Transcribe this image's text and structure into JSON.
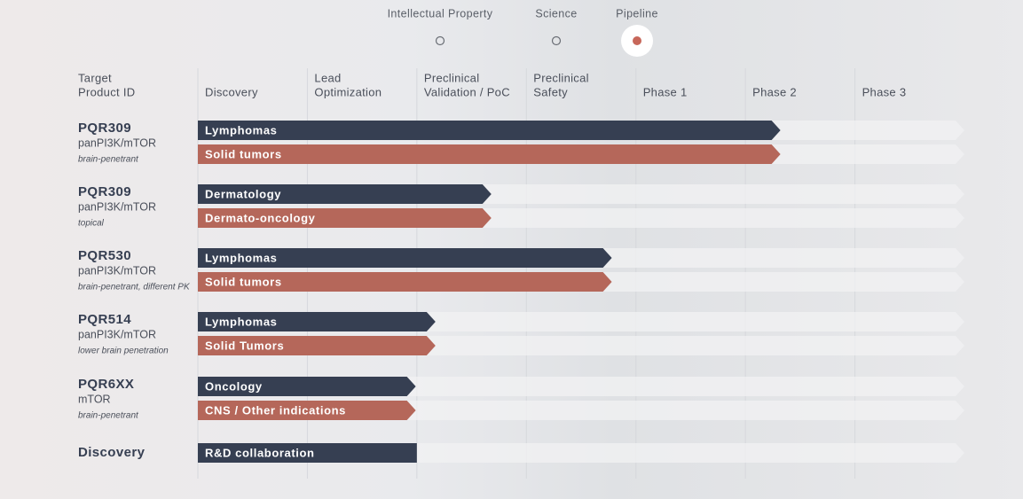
{
  "chart_data": {
    "type": "pipeline",
    "nav": [
      "Intellectual Property",
      "Science",
      "Pipeline"
    ],
    "active_nav": 2,
    "row_header": [
      "Target",
      "Product ID"
    ],
    "categories": [
      [
        "Discovery"
      ],
      [
        "Lead",
        "Optimization"
      ],
      [
        "Preclinical",
        "Validation / PoC"
      ],
      [
        "Preclinical",
        "Safety"
      ],
      [
        "Phase 1"
      ],
      [
        "Phase 2"
      ],
      [
        "Phase 3"
      ]
    ],
    "xlim": [
      0,
      7
    ],
    "products": [
      {
        "name": "PQR309",
        "target": "panPI3K/mTOR",
        "note": "brain-penetrant",
        "indications": [
          {
            "name": "Lymphomas",
            "color": "#363f52",
            "progress": 5.32
          },
          {
            "name": "Solid tumors",
            "color": "#b5675a",
            "progress": 5.32
          }
        ]
      },
      {
        "name": "PQR309",
        "target": "panPI3K/mTOR",
        "note": "topical",
        "indications": [
          {
            "name": "Dermatology",
            "color": "#363f52",
            "progress": 2.68
          },
          {
            "name": "Dermato-oncology",
            "color": "#b5675a",
            "progress": 2.68
          }
        ]
      },
      {
        "name": "PQR530",
        "target": "panPI3K/mTOR",
        "note": "brain-penetrant, different PK",
        "indications": [
          {
            "name": "Lymphomas",
            "color": "#363f52",
            "progress": 3.78
          },
          {
            "name": "Solid tumors",
            "color": "#b5675a",
            "progress": 3.78
          }
        ]
      },
      {
        "name": "PQR514",
        "target": "panPI3K/mTOR",
        "note": "lower brain penetration",
        "indications": [
          {
            "name": "Lymphomas",
            "color": "#363f52",
            "progress": 2.17
          },
          {
            "name": "Solid Tumors",
            "color": "#b5675a",
            "progress": 2.17
          }
        ]
      },
      {
        "name": "PQR6XX",
        "target": "mTOR",
        "note": "brain-penetrant",
        "indications": [
          {
            "name": "Oncology",
            "color": "#363f52",
            "progress": 1.99
          },
          {
            "name": "CNS / Other indications",
            "color": "#b5675a",
            "progress": 1.99
          }
        ]
      },
      {
        "name": "Discovery",
        "indications": [
          {
            "name": "R&D collaboration",
            "color": "#363f52",
            "progress": 2.0,
            "arrow": false
          }
        ]
      }
    ]
  }
}
